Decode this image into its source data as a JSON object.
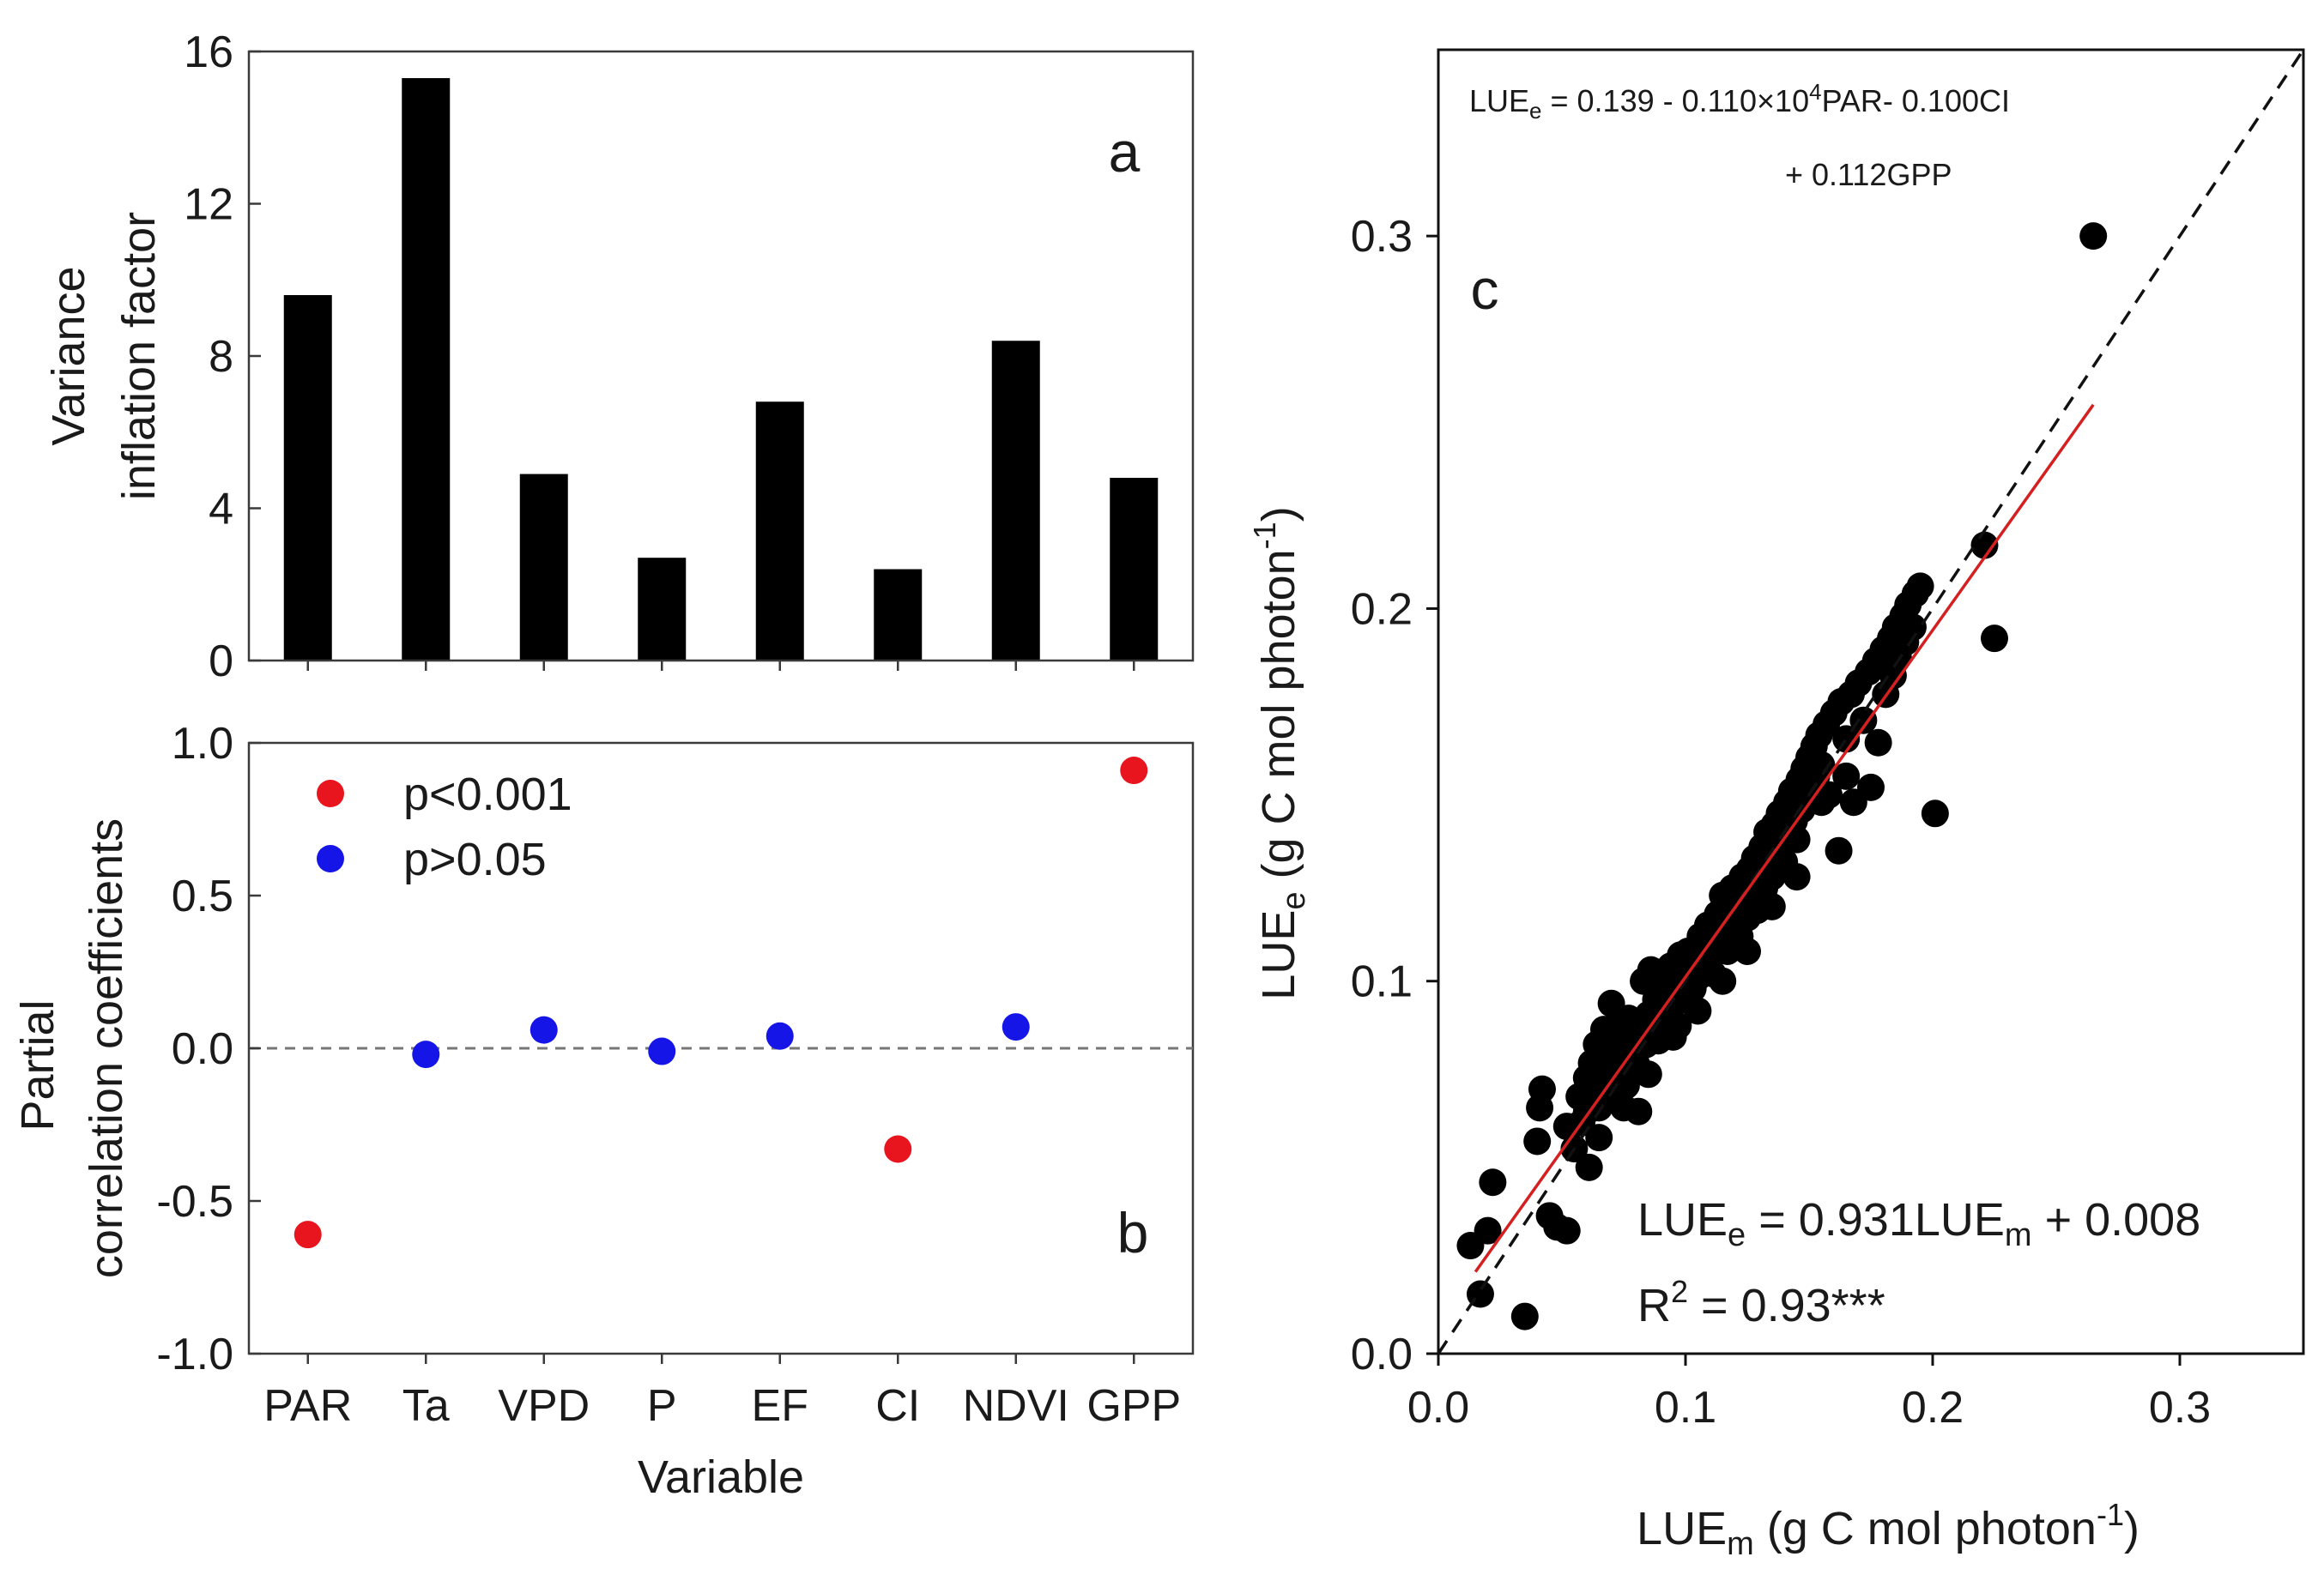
{
  "chart_data": [
    {
      "panel": "a",
      "type": "bar",
      "categories": [
        "PAR",
        "Ta",
        "VPD",
        "P",
        "EF",
        "CI",
        "NDVI",
        "GPP"
      ],
      "values": [
        9.6,
        15.3,
        4.9,
        2.7,
        6.8,
        2.4,
        8.4,
        4.8
      ],
      "ylabel_line1": "Variance",
      "ylabel_line2": "inflation factor",
      "ylim": [
        0,
        16
      ],
      "yticks": [
        "0",
        "4",
        "8",
        "12",
        "16"
      ],
      "panel_label": "a",
      "bar_color": "#000000"
    },
    {
      "panel": "b",
      "type": "scatter",
      "categories": [
        "PAR",
        "Ta",
        "VPD",
        "P",
        "EF",
        "CI",
        "NDVI",
        "GPP"
      ],
      "values": [
        -0.61,
        -0.02,
        0.06,
        -0.01,
        0.04,
        -0.33,
        0.07,
        0.91
      ],
      "significance": [
        "p<0.001",
        "p>0.05",
        "p>0.05",
        "p>0.05",
        "p>0.05",
        "p<0.001",
        "p>0.05",
        "p<0.001"
      ],
      "ylabel_line1": "Partial",
      "ylabel_line2": "correlation coefficients",
      "xlabel": "Variable",
      "ylim": [
        -1.0,
        1.0
      ],
      "yticks": [
        "-1.0",
        "-0.5",
        "0.0",
        "0.5",
        "1.0"
      ],
      "legend": [
        {
          "label": "p<0.001",
          "color": "#e8141e"
        },
        {
          "label": "p>0.05",
          "color": "#1515e8"
        }
      ],
      "reference_line": 0.0,
      "panel_label": "b"
    },
    {
      "panel": "c",
      "type": "scatter",
      "xlabel_main": "LUE",
      "xlabel_sub": "m",
      "xlabel_rest": " (g C mol photon",
      "xlabel_sup": "-1",
      "xlabel_end": ")",
      "ylabel_main": "LUE",
      "ylabel_sub": "e",
      "ylabel_rest": " (g C mol photon",
      "ylabel_sup": "-1",
      "ylabel_end": ")",
      "xlim": [
        0.0,
        0.35
      ],
      "ylim": [
        0.0,
        0.35
      ],
      "xticks": [
        "0.0",
        "0.1",
        "0.2",
        "0.3"
      ],
      "yticks": [
        "0.0",
        "0.1",
        "0.2",
        "0.3"
      ],
      "panel_label": "c",
      "top_eq_part1": "LUE",
      "top_eq_sub": "e",
      "top_eq_part2": " = 0.139 - 0.110×10",
      "top_eq_sup": "4",
      "top_eq_part3": "PAR- 0.100CI",
      "top_eq_line2": "+ 0.112GPP",
      "fit_eq_part1": "LUE",
      "fit_eq_sub1": "e",
      "fit_eq_part2": " = 0.931LUE",
      "fit_eq_sub2": "m",
      "fit_eq_part3": " + 0.008",
      "r2_part1": "R",
      "r2_sup": "2",
      "r2_part2": " = 0.93***",
      "fit": {
        "slope": 0.931,
        "intercept": 0.008,
        "x_range": [
          0.015,
          0.265
        ],
        "color": "#d42020"
      },
      "one_to_one": true,
      "points": [
        [
          0.013,
          0.029
        ],
        [
          0.017,
          0.016
        ],
        [
          0.02,
          0.033
        ],
        [
          0.022,
          0.046
        ],
        [
          0.035,
          0.01
        ],
        [
          0.04,
          0.057
        ],
        [
          0.041,
          0.066
        ],
        [
          0.042,
          0.071
        ],
        [
          0.045,
          0.037
        ],
        [
          0.048,
          0.034
        ],
        [
          0.052,
          0.033
        ],
        [
          0.052,
          0.061
        ],
        [
          0.055,
          0.055
        ],
        [
          0.057,
          0.069
        ],
        [
          0.058,
          0.062
        ],
        [
          0.06,
          0.065
        ],
        [
          0.06,
          0.074
        ],
        [
          0.061,
          0.05
        ],
        [
          0.062,
          0.078
        ],
        [
          0.063,
          0.07
        ],
        [
          0.064,
          0.083
        ],
        [
          0.065,
          0.066
        ],
        [
          0.066,
          0.075
        ],
        [
          0.067,
          0.087
        ],
        [
          0.068,
          0.072
        ],
        [
          0.069,
          0.079
        ],
        [
          0.07,
          0.094
        ],
        [
          0.071,
          0.068
        ],
        [
          0.072,
          0.082
        ],
        [
          0.073,
          0.088
        ],
        [
          0.074,
          0.076
        ],
        [
          0.075,
          0.084
        ],
        [
          0.076,
          0.072
        ],
        [
          0.077,
          0.09
        ],
        [
          0.078,
          0.081
        ],
        [
          0.079,
          0.086
        ],
        [
          0.08,
          0.078
        ],
        [
          0.081,
          0.065
        ],
        [
          0.082,
          0.088
        ],
        [
          0.083,
          0.1
        ],
        [
          0.084,
          0.083
        ],
        [
          0.085,
          0.091
        ],
        [
          0.086,
          0.103
        ],
        [
          0.087,
          0.087
        ],
        [
          0.088,
          0.095
        ],
        [
          0.089,
          0.084
        ],
        [
          0.09,
          0.098
        ],
        [
          0.091,
          0.092
        ],
        [
          0.092,
          0.1
        ],
        [
          0.093,
          0.09
        ],
        [
          0.094,
          0.104
        ],
        [
          0.095,
          0.096
        ],
        [
          0.096,
          0.101
        ],
        [
          0.097,
          0.088
        ],
        [
          0.098,
          0.107
        ],
        [
          0.099,
          0.1
        ],
        [
          0.1,
          0.095
        ],
        [
          0.101,
          0.108
        ],
        [
          0.102,
          0.103
        ],
        [
          0.103,
          0.098
        ],
        [
          0.104,
          0.106
        ],
        [
          0.105,
          0.101
        ],
        [
          0.106,
          0.112
        ],
        [
          0.107,
          0.104
        ],
        [
          0.108,
          0.109
        ],
        [
          0.109,
          0.115
        ],
        [
          0.11,
          0.107
        ],
        [
          0.111,
          0.102
        ],
        [
          0.112,
          0.113
        ],
        [
          0.113,
          0.118
        ],
        [
          0.114,
          0.11
        ],
        [
          0.115,
          0.123
        ],
        [
          0.116,
          0.114
        ],
        [
          0.117,
          0.108
        ],
        [
          0.118,
          0.119
        ],
        [
          0.119,
          0.125
        ],
        [
          0.12,
          0.116
        ],
        [
          0.121,
          0.12
        ],
        [
          0.122,
          0.112
        ],
        [
          0.123,
          0.128
        ],
        [
          0.124,
          0.121
        ],
        [
          0.125,
          0.117
        ],
        [
          0.126,
          0.13
        ],
        [
          0.127,
          0.124
        ],
        [
          0.128,
          0.133
        ],
        [
          0.129,
          0.119
        ],
        [
          0.13,
          0.127
        ],
        [
          0.131,
          0.136
        ],
        [
          0.132,
          0.125
        ],
        [
          0.133,
          0.14
        ],
        [
          0.134,
          0.131
        ],
        [
          0.135,
          0.128
        ],
        [
          0.136,
          0.142
        ],
        [
          0.137,
          0.134
        ],
        [
          0.138,
          0.145
        ],
        [
          0.139,
          0.137
        ],
        [
          0.14,
          0.132
        ],
        [
          0.141,
          0.148
        ],
        [
          0.142,
          0.14
        ],
        [
          0.143,
          0.151
        ],
        [
          0.144,
          0.143
        ],
        [
          0.145,
          0.138
        ],
        [
          0.146,
          0.154
        ],
        [
          0.147,
          0.146
        ],
        [
          0.148,
          0.157
        ],
        [
          0.149,
          0.149
        ],
        [
          0.15,
          0.16
        ],
        [
          0.151,
          0.152
        ],
        [
          0.152,
          0.163
        ],
        [
          0.153,
          0.155
        ],
        [
          0.154,
          0.166
        ],
        [
          0.155,
          0.158
        ],
        [
          0.157,
          0.169
        ],
        [
          0.158,
          0.15
        ],
        [
          0.16,
          0.172
        ],
        [
          0.162,
          0.135
        ],
        [
          0.163,
          0.175
        ],
        [
          0.165,
          0.165
        ],
        [
          0.167,
          0.177
        ],
        [
          0.168,
          0.148
        ],
        [
          0.17,
          0.18
        ],
        [
          0.172,
          0.17
        ],
        [
          0.174,
          0.183
        ],
        [
          0.175,
          0.152
        ],
        [
          0.177,
          0.186
        ],
        [
          0.178,
          0.164
        ],
        [
          0.18,
          0.189
        ],
        [
          0.181,
          0.177
        ],
        [
          0.183,
          0.192
        ],
        [
          0.184,
          0.182
        ],
        [
          0.185,
          0.195
        ],
        [
          0.186,
          0.187
        ],
        [
          0.188,
          0.198
        ],
        [
          0.189,
          0.191
        ],
        [
          0.19,
          0.201
        ],
        [
          0.192,
          0.195
        ],
        [
          0.193,
          0.204
        ],
        [
          0.195,
          0.206
        ],
        [
          0.201,
          0.145
        ],
        [
          0.221,
          0.217
        ],
        [
          0.225,
          0.192
        ],
        [
          0.155,
          0.148
        ],
        [
          0.165,
          0.155
        ],
        [
          0.145,
          0.128
        ],
        [
          0.135,
          0.12
        ],
        [
          0.125,
          0.108
        ],
        [
          0.115,
          0.1
        ],
        [
          0.105,
          0.092
        ],
        [
          0.095,
          0.085
        ],
        [
          0.085,
          0.075
        ],
        [
          0.075,
          0.066
        ],
        [
          0.065,
          0.058
        ],
        [
          0.265,
          0.3
        ]
      ]
    }
  ]
}
